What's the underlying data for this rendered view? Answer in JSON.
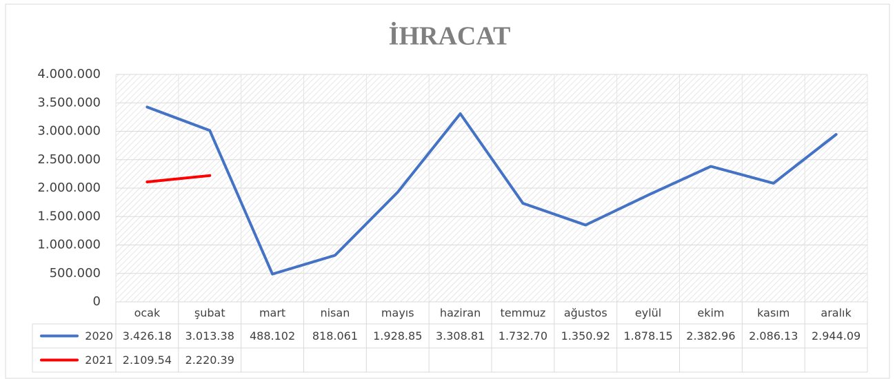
{
  "chart_data": {
    "type": "line",
    "title": "İHRACAT",
    "categories": [
      "ocak",
      "şubat",
      "mart",
      "nisan",
      "mayıs",
      "haziran",
      "temmuz",
      "ağustos",
      "eylül",
      "ekim",
      "kasım",
      "aralık"
    ],
    "series": [
      {
        "name": "2020",
        "color": "#4472c4",
        "values": [
          3426180,
          3013380,
          488102,
          818061,
          1928850,
          3308810,
          1732700,
          1350920,
          1878150,
          2382960,
          2086130,
          2944090
        ],
        "value_labels": [
          "3.426.18",
          "3.013.38",
          "488.102",
          "818.061",
          "1.928.85",
          "3.308.81",
          "1.732.70",
          "1.350.92",
          "1.878.15",
          "2.382.96",
          "2.086.13",
          "2.944.09"
        ]
      },
      {
        "name": "2021",
        "color": "#ff0000",
        "values": [
          2109540,
          2220390,
          null,
          null,
          null,
          null,
          null,
          null,
          null,
          null,
          null,
          null
        ],
        "value_labels": [
          "2.109.54",
          "2.220.39",
          null,
          null,
          null,
          null,
          null,
          null,
          null,
          null,
          null,
          null
        ]
      }
    ],
    "ylim": [
      0,
      4000000
    ],
    "yticks": [
      0,
      {
        "value": 500000,
        "label": "500.000"
      },
      {
        "value": 1000000,
        "label": "1.000.000"
      },
      {
        "value": 1500000,
        "label": "1.500.000"
      },
      {
        "value": 2000000,
        "label": "2.000.000"
      },
      {
        "value": 2500000,
        "label": "2.500.000"
      },
      {
        "value": 3000000,
        "label": "3.000.000"
      },
      {
        "value": 3500000,
        "label": "3.500.000"
      },
      {
        "value": 4000000,
        "label": "4.000.000"
      }
    ],
    "grid": true
  }
}
